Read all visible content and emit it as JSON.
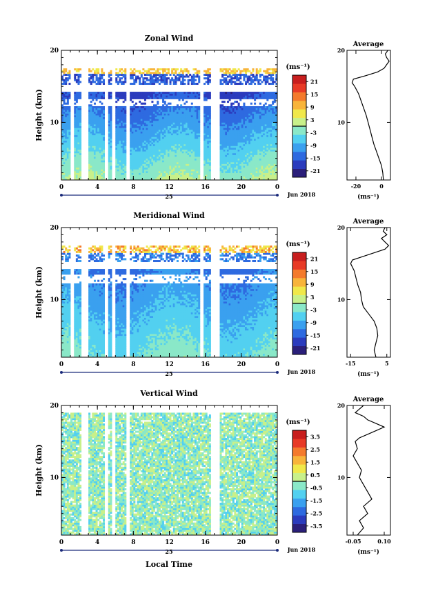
{
  "figure": {
    "xlabel": "Local Time",
    "date_label": "Jun 2018",
    "day_label": "25",
    "colorbar_unit": "(ms⁻¹)",
    "profile_unit": "(ms⁻¹)"
  },
  "chart_data": [
    {
      "type": "heatmap",
      "title": "Zonal Wind",
      "xlabel": "Local Time",
      "ylabel": "Height (km)",
      "x_ticks": [
        "0",
        "4",
        "8",
        "12",
        "16",
        "20",
        "0"
      ],
      "xlim": [
        0,
        24
      ],
      "y_ticks": [
        "10",
        "20"
      ],
      "ylim": [
        2,
        20
      ],
      "colorbar": {
        "unit": "(ms⁻¹)",
        "ticks": [
          "21",
          "15",
          "9",
          "3",
          "-3",
          "-9",
          "-15",
          "-21"
        ],
        "range": [
          -24,
          24
        ],
        "colors": [
          "#2b1f7a",
          "#2b3bbd",
          "#2e6ae0",
          "#3aa0ef",
          "#52d0f0",
          "#8ae8c8",
          "#c8f08a",
          "#f0e84a",
          "#f8b43a",
          "#f47a2c",
          "#e83a26",
          "#c81e1e"
        ]
      },
      "profile": {
        "title": "Average",
        "x_ticks": [
          "-20",
          "0"
        ],
        "xlim": [
          -27,
          7
        ],
        "y_ticks": [
          "10",
          "20"
        ],
        "height": [
          2,
          3,
          4,
          5,
          6,
          7,
          8,
          9,
          10,
          11,
          12,
          13,
          14,
          15,
          15.5,
          16,
          16.5,
          17,
          17.5,
          18,
          18.5,
          19,
          19.5,
          20
        ],
        "wind": [
          1.5,
          1,
          0,
          -2,
          -4,
          -6,
          -7.5,
          -9,
          -10.5,
          -12,
          -14,
          -16,
          -18,
          -21,
          -23,
          -22,
          -12,
          -3,
          2,
          4,
          6,
          4,
          3,
          5
        ]
      },
      "valid_height": [
        2,
        17.6
      ]
    },
    {
      "type": "heatmap",
      "title": "Meridional Wind",
      "xlabel": "Local Time",
      "ylabel": "Height (km)",
      "x_ticks": [
        "0",
        "4",
        "8",
        "12",
        "16",
        "20",
        "0"
      ],
      "xlim": [
        0,
        24
      ],
      "y_ticks": [
        "10",
        "20"
      ],
      "ylim": [
        2,
        20
      ],
      "colorbar": {
        "unit": "(ms⁻¹)",
        "ticks": [
          "21",
          "15",
          "9",
          "3",
          "-3",
          "-9",
          "-15",
          "-21"
        ],
        "range": [
          -24,
          24
        ],
        "colors": [
          "#2b1f7a",
          "#2b3bbd",
          "#2e6ae0",
          "#3aa0ef",
          "#52d0f0",
          "#8ae8c8",
          "#c8f08a",
          "#f0e84a",
          "#f8b43a",
          "#f47a2c",
          "#e83a26",
          "#c81e1e"
        ]
      },
      "profile": {
        "title": "Average",
        "x_ticks": [
          "-15",
          "5"
        ],
        "xlim": [
          -17,
          7
        ],
        "y_ticks": [
          "10",
          "20"
        ],
        "height": [
          2,
          3,
          4,
          5,
          6,
          7,
          8,
          9,
          10,
          11,
          12,
          13,
          14,
          15,
          15.5,
          16,
          16.5,
          17,
          17.5,
          18,
          18.5,
          19,
          19.5,
          20
        ],
        "wind": [
          -1,
          -2,
          -1,
          0,
          -0.5,
          -2,
          -5,
          -8,
          -9,
          -9.5,
          -11,
          -12,
          -13,
          -15,
          -14,
          -8,
          -2,
          4,
          6,
          4,
          2,
          5,
          3,
          4
        ]
      },
      "valid_height": [
        2,
        17.6
      ]
    },
    {
      "type": "heatmap",
      "title": "Vertical Wind",
      "xlabel": "Local Time",
      "ylabel": "Height (km)",
      "x_ticks": [
        "0",
        "4",
        "8",
        "12",
        "16",
        "20",
        "0"
      ],
      "xlim": [
        0,
        24
      ],
      "y_ticks": [
        "10",
        "20"
      ],
      "ylim": [
        2,
        20
      ],
      "colorbar": {
        "unit": "(ms⁻¹)",
        "ticks": [
          "3.5",
          "2.5",
          "1.5",
          "0.5",
          "-0.5",
          "-1.5",
          "-2.5",
          "-3.5"
        ],
        "range": [
          -4,
          4
        ],
        "colors": [
          "#2b1f7a",
          "#2b3bbd",
          "#2e6ae0",
          "#3aa0ef",
          "#52d0f0",
          "#8ae8c8",
          "#c8f08a",
          "#f0e84a",
          "#f8b43a",
          "#f47a2c",
          "#e83a26",
          "#c81e1e"
        ]
      },
      "profile": {
        "title": "Average",
        "x_ticks": [
          "-0.05",
          "0.10"
        ],
        "xlim": [
          -0.08,
          0.13
        ],
        "y_ticks": [
          "10",
          "20"
        ],
        "height": [
          2,
          3,
          4,
          5,
          6,
          7,
          8,
          9,
          10,
          11,
          12,
          13,
          14,
          15,
          15.5,
          16,
          16.5,
          17,
          17.5,
          18,
          18.5,
          19,
          19.5,
          20
        ],
        "wind": [
          -0.03,
          0.0,
          -0.02,
          0.02,
          0.0,
          0.04,
          0.02,
          0.0,
          -0.02,
          -0.01,
          -0.03,
          -0.05,
          -0.03,
          -0.04,
          -0.02,
          0.02,
          0.06,
          0.1,
          0.06,
          0.02,
          0.0,
          -0.04,
          -0.02,
          0.0
        ]
      },
      "valid_height": [
        2,
        19
      ]
    }
  ]
}
